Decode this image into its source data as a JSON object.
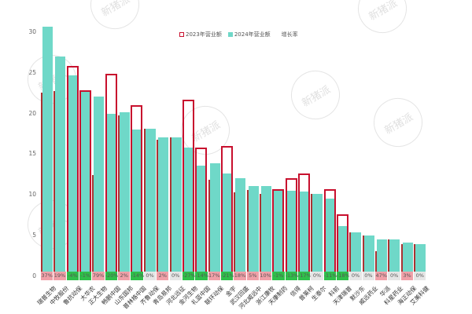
{
  "chart_data": {
    "type": "bar",
    "title": "",
    "xlabel": "",
    "ylabel": "",
    "ylim": [
      0,
      30
    ],
    "yticks": [
      0,
      5,
      10,
      15,
      20,
      25,
      30
    ],
    "grid": false,
    "legend_position": "top-right",
    "legend": [
      "2023年营业额",
      "2024年营业额",
      "增长率"
    ],
    "categories": [
      "瑞普生物",
      "中牧股份",
      "鲁抗动保",
      "大华农",
      "正大生物",
      "畅鹏中国",
      "山东国邦",
      "普林格中国",
      "齐鲁动保",
      "青岛易邦",
      "河北远征",
      "金河生物",
      "礼蓝中国",
      "联环动保",
      "金宇",
      "武汉回盛",
      "河北威远中",
      "浙江康牧",
      "天康制药",
      "信得",
      "普莱柯",
      "生泰尔",
      "科前",
      "天津瑞普",
      "默沙东",
      "威远药业",
      "华派",
      "科星药业",
      "海正动保",
      "艾美科健"
    ],
    "series": [
      {
        "name": "2023年营业额",
        "style": "outline",
        "color": "#c8102e",
        "values": [
          22.6,
          22.8,
          25.8,
          22.9,
          12.4,
          24.9,
          19.8,
          21.0,
          18.1,
          16.8,
          17.1,
          21.7,
          15.8,
          11.9,
          16.0,
          10.3,
          10.6,
          10.1,
          10.7,
          12.1,
          12.6,
          10.1,
          10.7,
          7.6,
          5.4,
          5.0,
          3.1,
          4.5,
          4.0,
          4.0
        ]
      },
      {
        "name": "2024年营业额",
        "style": "fill",
        "color": "#6fd8c8",
        "values": [
          30.7,
          27.0,
          24.7,
          22.7,
          22.1,
          20.0,
          20.2,
          18.0,
          18.1,
          17.1,
          17.1,
          15.8,
          13.6,
          13.9,
          12.6,
          12.1,
          11.1,
          11.1,
          10.6,
          10.5,
          10.4,
          10.1,
          9.5,
          6.2,
          5.4,
          5.0,
          4.5,
          4.5,
          4.1,
          4.0
        ]
      },
      {
        "name": "增长率",
        "values": [
          "37%",
          "19%",
          "-4%",
          "-1%",
          "79%",
          "-20%",
          "2%",
          "-14%",
          "0%",
          "2%",
          "0%",
          "-27%",
          "-14%",
          "17%",
          "-21%",
          "18%",
          "5%",
          "10%",
          "-1%",
          "-13%",
          "-17%",
          "0%",
          "-11%",
          "-18%",
          "0%",
          "0%",
          "47%",
          "0%",
          "3%",
          "0%"
        ]
      }
    ]
  },
  "legend": {
    "item_2023": "2023年营业额",
    "item_2024": "2024年营业额",
    "item_growth": "增长率"
  },
  "watermark_text": "新猪派",
  "colors": {
    "bar_2024": "#6fd8c8",
    "bar_2023_outline": "#c8102e",
    "growth_positive": "#f0a0a8",
    "growth_negative": "#2fbf4a",
    "growth_zero": "#e6e6e6"
  }
}
